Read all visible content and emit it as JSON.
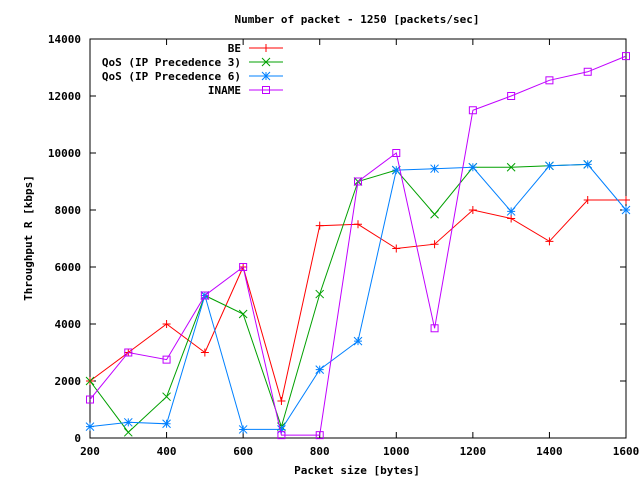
{
  "chart_data": {
    "type": "line",
    "title": "Number of packet - 1250 [packets/sec]",
    "xlabel": "Packet size [bytes]",
    "ylabel": "Throughput R [kbps]",
    "xlim": [
      200,
      1600
    ],
    "ylim": [
      0,
      14000
    ],
    "xticks": [
      "200",
      "400",
      "600",
      "800",
      "1000",
      "1200",
      "1400",
      "1600"
    ],
    "yticks": [
      "0",
      "2000",
      "4000",
      "6000",
      "8000",
      "10000",
      "12000",
      "14000"
    ],
    "grid": false,
    "legend_position": "top-right",
    "series": [
      {
        "name": "BE",
        "color": "#ff0000",
        "marker": "plus",
        "x": [
          200,
          300,
          400,
          500,
          600,
          700,
          800,
          900,
          1000,
          1100,
          1200,
          1300,
          1400,
          1500,
          1600
        ],
        "y": [
          2000,
          3000,
          4000,
          3000,
          6000,
          1300,
          7450,
          7500,
          6650,
          6800,
          8000,
          7700,
          6900,
          8350,
          8350
        ]
      },
      {
        "name": "QoS (IP Precedence 3)",
        "color": "#00a000",
        "marker": "cross",
        "x": [
          200,
          300,
          400,
          500,
          600,
          700,
          800,
          900,
          1000,
          1100,
          1200,
          1300,
          1400,
          1500
        ],
        "y": [
          2000,
          200,
          1450,
          5000,
          4350,
          400,
          5050,
          9000,
          9400,
          7850,
          9500,
          9500,
          9550,
          9600
        ]
      },
      {
        "name": "QoS (IP Precedence 6)",
        "color": "#0080ff",
        "marker": "star",
        "x": [
          200,
          300,
          400,
          500,
          600,
          700,
          800,
          900,
          1000,
          1100,
          1200,
          1300,
          1400,
          1500,
          1600
        ],
        "y": [
          400,
          550,
          500,
          5000,
          300,
          300,
          2400,
          3400,
          9400,
          9450,
          9500,
          7950,
          9550,
          9600,
          8000
        ]
      },
      {
        "name": "INAME",
        "color": "#c000ff",
        "marker": "square",
        "x": [
          200,
          300,
          400,
          500,
          600,
          700,
          800,
          900,
          1000,
          1100,
          1200,
          1300,
          1400,
          1500,
          1600
        ],
        "y": [
          1350,
          3000,
          2750,
          5000,
          6000,
          100,
          100,
          9000,
          10000,
          3850,
          11500,
          12000,
          12550,
          12850,
          13400
        ]
      }
    ]
  }
}
